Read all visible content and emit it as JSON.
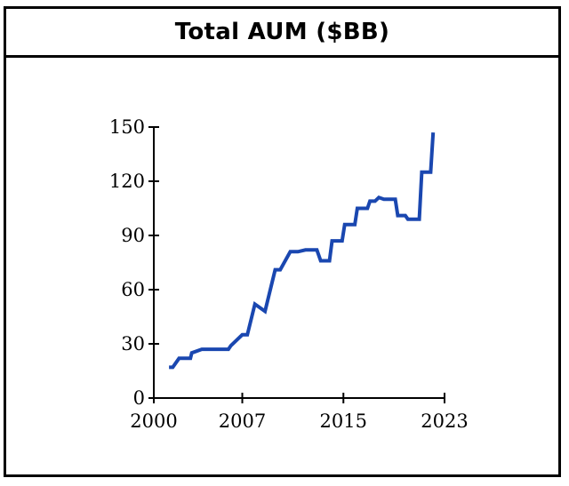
{
  "chart_data": {
    "type": "line",
    "title": "Total AUM ($BB)",
    "xlabel": "",
    "ylabel": "",
    "xlim": [
      2000,
      2023
    ],
    "ylim": [
      0,
      150
    ],
    "x_ticks": [
      2000,
      2007,
      2015,
      2023
    ],
    "y_ticks": [
      0,
      30,
      60,
      90,
      120,
      150
    ],
    "grid": false,
    "color": "#1a47b0",
    "series": [
      {
        "x": [
          2001.2,
          2001.5,
          2002.0,
          2002.9,
          2003.0,
          2003.8,
          2004.0,
          2005.9,
          2006.1,
          2007.0,
          2007.4,
          2008.0,
          2008.8,
          2009.6,
          2010.0,
          2010.8,
          2011.4,
          2012.0,
          2012.6,
          2012.9,
          2013.2,
          2013.9,
          2014.1,
          2014.9,
          2015.1,
          2015.9,
          2016.1,
          2016.9,
          2017.1,
          2017.5,
          2017.8,
          2018.2,
          2018.5,
          2019.1,
          2019.3,
          2019.9,
          2020.1,
          2021.0,
          2021.2,
          2021.9,
          2022.1
        ],
        "y": [
          17,
          17,
          22,
          22,
          25,
          27,
          27,
          27,
          29,
          35,
          35,
          52,
          48,
          71,
          71,
          81,
          81,
          82,
          82,
          82,
          76,
          76,
          87,
          87,
          96,
          96,
          105,
          105,
          109,
          109,
          111,
          110,
          110,
          110,
          101,
          101,
          99,
          99,
          125,
          125,
          147
        ]
      }
    ]
  }
}
